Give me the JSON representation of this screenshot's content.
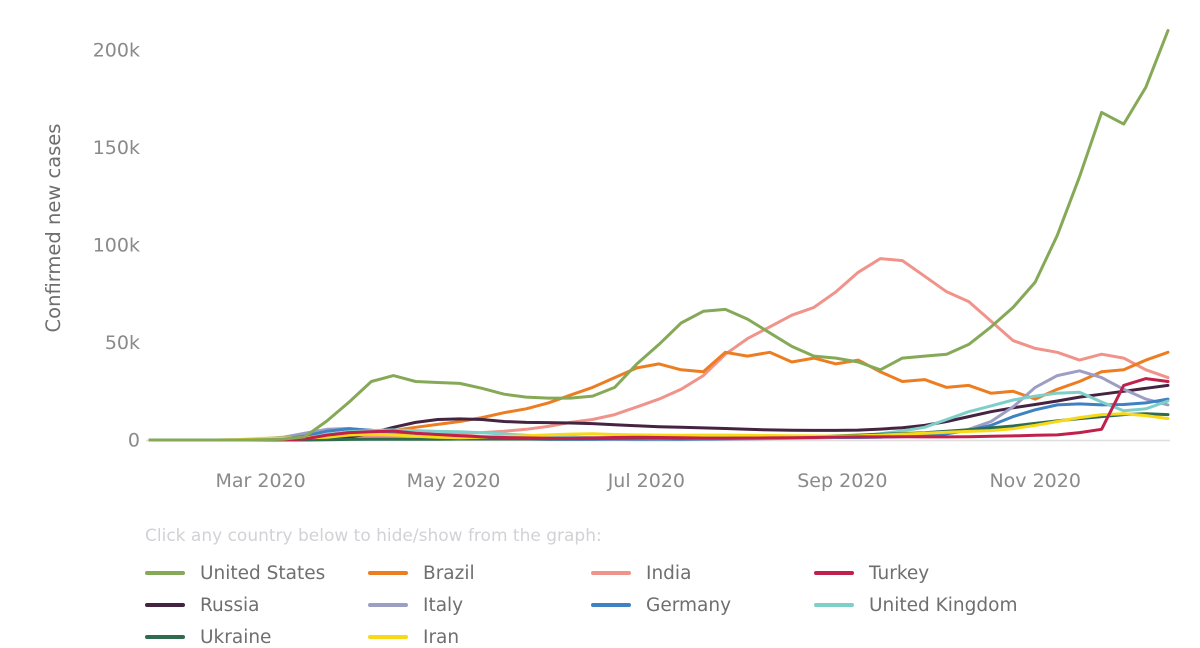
{
  "chart_data": {
    "type": "line",
    "title": "",
    "ylabel": "Confirmed new cases",
    "ylim_k": [
      0,
      215
    ],
    "grid": false,
    "legend_position": "bottom",
    "y_ticks": [
      {
        "label": "0",
        "value_k": 0
      },
      {
        "label": "50k",
        "value_k": 50
      },
      {
        "label": "100k",
        "value_k": 100
      },
      {
        "label": "150k",
        "value_k": 150
      },
      {
        "label": "200k",
        "value_k": 200
      }
    ],
    "x_ticks": [
      {
        "label": "Mar 2020",
        "day": 35
      },
      {
        "label": "May 2020",
        "day": 96
      },
      {
        "label": "Jul 2020",
        "day": 157
      },
      {
        "label": "Sep 2020",
        "day": 219
      },
      {
        "label": "Nov 2020",
        "day": 280
      }
    ],
    "step_days": 7,
    "n_points": 47,
    "series": [
      {
        "name": "United States",
        "color": "#85a957",
        "values_k": [
          0,
          0,
          0,
          0,
          0,
          0.1,
          0.4,
          1.7,
          9.8,
          19.5,
          30,
          33,
          30,
          29.5,
          29,
          26.5,
          23.5,
          22,
          21.5,
          21.5,
          22.5,
          27,
          39,
          49,
          60,
          66,
          67,
          62,
          55,
          48,
          43,
          42,
          40,
          36,
          42,
          43,
          44,
          49,
          58,
          68,
          81,
          105,
          135,
          168,
          162,
          181,
          210
        ]
      },
      {
        "name": "Brazil",
        "color": "#ed7d21",
        "values_k": [
          0,
          0,
          0,
          0,
          0,
          0,
          0,
          0.2,
          1,
          2,
          3,
          5,
          6.5,
          8,
          9.5,
          11.5,
          14,
          16,
          19,
          23,
          27,
          32,
          37,
          39,
          36,
          35,
          45,
          43,
          45,
          40,
          42,
          39,
          41,
          35,
          30,
          31,
          27,
          28,
          24,
          25,
          21,
          26,
          30,
          35,
          36,
          41,
          45
        ]
      },
      {
        "name": "India",
        "color": "#f0938a",
        "values_k": [
          0,
          0,
          0,
          0,
          0,
          0,
          0,
          0.1,
          0.3,
          0.8,
          1.5,
          1.8,
          2.2,
          2.7,
          3.2,
          3.8,
          4.5,
          5.5,
          7,
          9,
          10.5,
          13,
          17,
          21,
          26,
          33,
          44,
          52,
          58,
          64,
          68,
          76,
          86,
          93,
          92,
          84,
          76,
          71,
          61,
          51,
          47,
          45,
          41,
          44,
          42,
          36,
          32
        ]
      },
      {
        "name": "Turkey",
        "color": "#c0204a",
        "values_k": [
          0,
          0,
          0,
          0,
          0,
          0,
          0,
          0.5,
          2.5,
          3.8,
          4.2,
          4.6,
          3.5,
          2.8,
          2.2,
          1.7,
          1.3,
          1.1,
          0.9,
          0.9,
          1.1,
          1.3,
          1.4,
          1.3,
          1.2,
          1,
          0.9,
          1,
          1.1,
          1.2,
          1.3,
          1.5,
          1.6,
          1.6,
          1.7,
          1.6,
          1.6,
          1.7,
          1.9,
          2.1,
          2.4,
          2.6,
          3.8,
          5.5,
          28,
          31.5,
          30
        ]
      },
      {
        "name": "Russia",
        "color": "#452442",
        "values_k": [
          0,
          0,
          0,
          0,
          0,
          0,
          0,
          0.1,
          0.5,
          1.5,
          3.5,
          6.5,
          9,
          10.5,
          10.8,
          10.5,
          9.5,
          9,
          8.9,
          8.7,
          8.4,
          7.8,
          7.3,
          6.8,
          6.5,
          6.2,
          5.9,
          5.5,
          5.2,
          5,
          4.9,
          4.9,
          5.1,
          5.6,
          6.3,
          7.5,
          9.5,
          12,
          14.5,
          16.5,
          18.2,
          20,
          22,
          23.5,
          25,
          26.5,
          28
        ]
      },
      {
        "name": "Italy",
        "color": "#9d9ec4",
        "values_k": [
          0,
          0,
          0,
          0,
          0.1,
          0.6,
          1.4,
          3.5,
          5.5,
          5.9,
          4.7,
          3.8,
          3,
          2.3,
          1.8,
          1.1,
          0.8,
          0.6,
          0.4,
          0.3,
          0.3,
          0.3,
          0.2,
          0.2,
          0.2,
          0.3,
          0.4,
          0.5,
          0.7,
          0.9,
          1.1,
          1.3,
          1.4,
          1.5,
          1.7,
          2.3,
          3.2,
          5.5,
          9.5,
          17,
          27,
          33,
          35.5,
          32,
          26,
          21,
          18
        ]
      },
      {
        "name": "Germany",
        "color": "#3f82c4",
        "values_k": [
          0,
          0,
          0,
          0,
          0,
          0.1,
          0.5,
          2,
          4.5,
          5.8,
          5,
          4,
          2.6,
          1.9,
          1.3,
          0.9,
          0.6,
          0.5,
          0.4,
          0.4,
          0.4,
          0.5,
          0.5,
          0.4,
          0.4,
          0.5,
          0.7,
          0.9,
          1.1,
          1.3,
          1.4,
          1.3,
          1.3,
          1.5,
          1.9,
          2.4,
          3.2,
          5,
          7.5,
          12,
          15.5,
          18,
          18.5,
          18,
          18.2,
          19,
          21
        ]
      },
      {
        "name": "United Kingdom",
        "color": "#7fcfc9",
        "values_k": [
          0,
          0,
          0,
          0,
          0,
          0,
          0.1,
          0.8,
          2.8,
          4.2,
          4.8,
          5.2,
          4.8,
          4.4,
          4.2,
          3.7,
          3.1,
          2.4,
          1.9,
          1.6,
          1.2,
          1,
          0.8,
          0.6,
          0.7,
          0.7,
          0.8,
          0.8,
          1,
          1.1,
          1.2,
          1.5,
          2.2,
          3.2,
          4.6,
          6.5,
          10.5,
          14.5,
          17.5,
          20.5,
          22.5,
          24,
          24.5,
          19.5,
          15,
          16,
          20
        ]
      },
      {
        "name": "Ukraine",
        "color": "#2f6b4e",
        "values_k": [
          0,
          0,
          0,
          0,
          0,
          0,
          0,
          0,
          0.1,
          0.3,
          0.4,
          0.4,
          0.4,
          0.4,
          0.5,
          0.5,
          0.5,
          0.5,
          0.5,
          0.6,
          0.7,
          0.8,
          0.9,
          0.9,
          0.8,
          0.9,
          1,
          1.1,
          1.3,
          1.6,
          1.9,
          2.1,
          2.5,
          2.9,
          3.3,
          3.7,
          4.5,
          5.3,
          6.2,
          7.2,
          8.5,
          9.8,
          11,
          12,
          13,
          13.5,
          13
        ]
      },
      {
        "name": "Iran",
        "color": "#f7d917",
        "values_k": [
          0,
          0,
          0,
          0,
          0.2,
          0.8,
          1,
          1.1,
          1.4,
          2.5,
          3,
          2.6,
          1.9,
          1.4,
          1.2,
          1.4,
          1.8,
          2.2,
          2.6,
          3,
          3.2,
          2.8,
          2.6,
          2.5,
          2.4,
          2.5,
          2.5,
          2.4,
          2.3,
          2.2,
          2.1,
          2,
          2.1,
          2.5,
          3,
          3.5,
          4,
          4.4,
          4.8,
          5.8,
          7.5,
          9.5,
          11.5,
          13,
          13.5,
          12.5,
          11
        ]
      }
    ]
  },
  "legend": {
    "hint": "Click any country below to hide/show from the graph:"
  },
  "colors": {
    "background": "#ffffff",
    "axis_text": "#8a8a8a",
    "axis_title_text": "#6e6e6e",
    "legend_label_text": "#6f6f6f",
    "hint_text": "#d2d2d6",
    "baseline": "#dedede"
  }
}
